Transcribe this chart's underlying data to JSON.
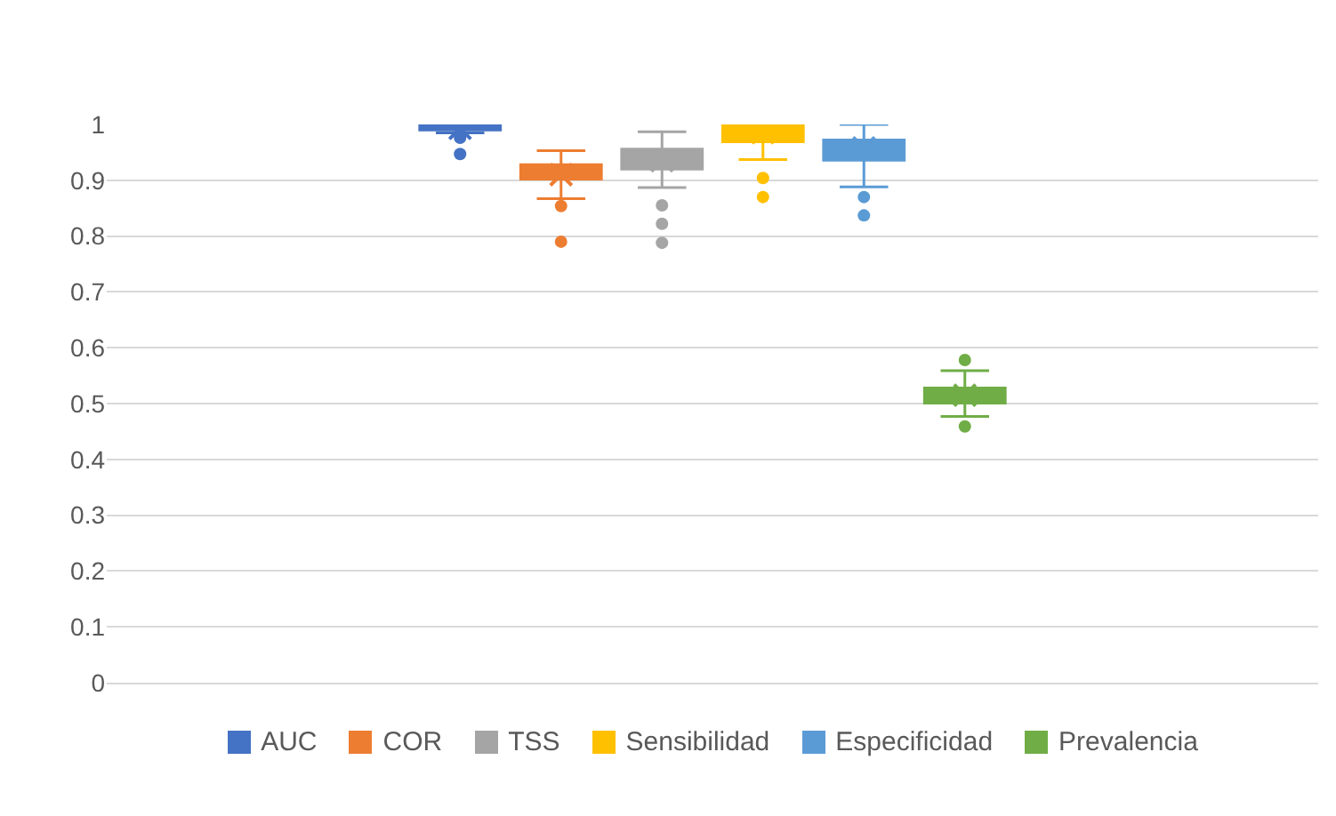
{
  "chart_data": {
    "type": "box",
    "categories": [
      null
    ],
    "series": [
      {
        "name": "AUC",
        "color": "#4472c4",
        "boxes": [
          {
            "low": 0.985,
            "q1": 0.99,
            "median": 0.995,
            "q3": 1,
            "high": 1,
            "mean": 0.993,
            "outliers": [
              0.976,
              0.947
            ]
          }
        ]
      },
      {
        "name": "COR",
        "color": "#ed7d31",
        "boxes": [
          {
            "low": 0.867,
            "q1": 0.902,
            "median": 0.915,
            "q3": 0.928,
            "high": 0.953,
            "mean": 0.91,
            "outliers": [
              0.854,
              0.79
            ]
          }
        ]
      },
      {
        "name": "TSS",
        "color": "#a5a5a5",
        "boxes": [
          {
            "low": 0.887,
            "q1": 0.92,
            "median": 0.938,
            "q3": 0.956,
            "high": 0.987,
            "mean": 0.935,
            "outliers": [
              0.855,
              0.822,
              0.788
            ]
          }
        ]
      },
      {
        "name": "Sensibilidad",
        "color": "#ffc000",
        "boxes": [
          {
            "low": 0.937,
            "q1": 0.969,
            "median": 0.987,
            "q3": 1,
            "high": 1,
            "mean": 0.985,
            "outliers": [
              0.904,
              0.87
            ]
          }
        ]
      },
      {
        "name": "Especificidad",
        "color": "#5b9bd5",
        "boxes": [
          {
            "low": 0.888,
            "q1": 0.936,
            "median": 0.955,
            "q3": 0.972,
            "high": 1,
            "mean": 0.958,
            "outliers": [
              0.87,
              0.837
            ]
          }
        ]
      },
      {
        "name": "Prevalencia",
        "color": "#70ad47",
        "boxes": [
          {
            "low": 0.477,
            "q1": 0.501,
            "median": 0.515,
            "q3": 0.528,
            "high": 0.559,
            "mean": 0.515,
            "outliers": [
              0.578,
              0.459
            ]
          }
        ]
      }
    ],
    "ylim": [
      0,
      1
    ],
    "yticks": [
      0,
      0.1,
      0.2,
      0.3,
      0.4,
      0.5,
      0.6,
      0.7,
      0.8,
      0.9,
      1
    ],
    "grid": "y",
    "legend": "bottom",
    "tick_labels": "y"
  }
}
